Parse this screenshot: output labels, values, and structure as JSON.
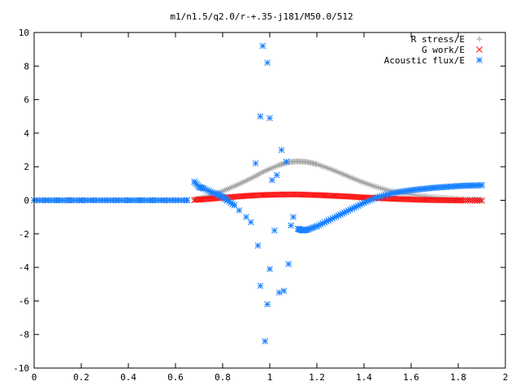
{
  "chart_data": {
    "type": "scatter",
    "title": "m1/n1.5/q2.0/r-+.35-j181/M50.0/512",
    "xlabel": "",
    "ylabel": "",
    "xlim": [
      0,
      2
    ],
    "ylim": [
      -10,
      10
    ],
    "x_ticks": [
      "0",
      "0.2",
      "0.4",
      "0.6",
      "0.8",
      "1",
      "1.2",
      "1.4",
      "1.6",
      "1.8",
      "2"
    ],
    "y_ticks": [
      "10",
      "8",
      "6",
      "4",
      "2",
      "0",
      "-2",
      "-4",
      "-6",
      "-8",
      "-10"
    ],
    "grid": false,
    "legend_position": "top-right",
    "series": [
      {
        "name": "R stress/E",
        "marker": "+",
        "color": "#a0a0a0",
        "x": [
          0.68,
          0.74,
          0.8,
          0.86,
          0.92,
          0.98,
          1.04,
          1.08,
          1.12,
          1.16,
          1.2,
          1.26,
          1.32,
          1.38,
          1.44,
          1.5,
          1.56,
          1.62,
          1.68,
          1.74,
          1.8,
          1.86,
          1.9
        ],
        "y": [
          0.05,
          0.25,
          0.55,
          0.9,
          1.3,
          1.75,
          2.1,
          2.28,
          2.32,
          2.28,
          2.15,
          1.85,
          1.5,
          1.15,
          0.85,
          0.6,
          0.42,
          0.3,
          0.2,
          0.13,
          0.08,
          0.05,
          0.03
        ]
      },
      {
        "name": "G work/E",
        "marker": "x",
        "color": "#ff0000",
        "x": [
          0.68,
          0.74,
          0.8,
          0.86,
          0.92,
          0.98,
          1.04,
          1.1,
          1.16,
          1.22,
          1.28,
          1.34,
          1.4,
          1.46,
          1.52,
          1.58,
          1.64,
          1.7,
          1.76,
          1.82,
          1.9
        ],
        "y": [
          0.02,
          0.08,
          0.15,
          0.22,
          0.28,
          0.32,
          0.34,
          0.35,
          0.33,
          0.3,
          0.26,
          0.22,
          0.17,
          0.13,
          0.09,
          0.06,
          0.03,
          0.01,
          0.0,
          -0.01,
          -0.02
        ]
      },
      {
        "name": "Acoustic flux/E",
        "marker": "*",
        "color": "#1a80ff",
        "x": [
          0.0,
          0.05,
          0.1,
          0.15,
          0.2,
          0.25,
          0.3,
          0.35,
          0.4,
          0.45,
          0.5,
          0.55,
          0.6,
          0.65,
          0.68,
          0.7,
          0.72,
          0.75,
          0.78,
          0.8,
          0.82,
          0.85,
          0.87,
          0.9,
          0.92,
          0.94,
          0.95,
          0.96,
          0.96,
          0.97,
          0.98,
          0.99,
          0.99,
          1.0,
          1.0,
          1.01,
          1.02,
          1.03,
          1.04,
          1.05,
          1.06,
          1.07,
          1.08,
          1.09,
          1.1,
          1.12,
          1.14,
          1.16,
          1.2,
          1.25,
          1.3,
          1.35,
          1.4,
          1.45,
          1.5,
          1.55,
          1.6,
          1.65,
          1.7,
          1.75,
          1.8,
          1.85,
          1.9
        ],
        "y": [
          0.0,
          0.0,
          0.0,
          0.0,
          0.0,
          0.0,
          0.0,
          0.0,
          0.0,
          0.0,
          0.0,
          0.0,
          0.0,
          0.0,
          1.1,
          0.8,
          0.7,
          0.5,
          0.35,
          0.2,
          0.0,
          -0.3,
          -0.6,
          -1.0,
          -1.3,
          2.2,
          -2.7,
          5.0,
          -5.1,
          9.2,
          -8.4,
          8.2,
          -6.2,
          4.9,
          -4.1,
          1.2,
          -1.8,
          1.5,
          -5.5,
          3.0,
          -5.4,
          2.3,
          -3.8,
          -1.5,
          -1.0,
          -1.7,
          -1.8,
          -1.75,
          -1.55,
          -1.2,
          -0.85,
          -0.5,
          -0.15,
          0.15,
          0.35,
          0.5,
          0.6,
          0.68,
          0.75,
          0.8,
          0.85,
          0.88,
          0.9
        ]
      }
    ]
  }
}
